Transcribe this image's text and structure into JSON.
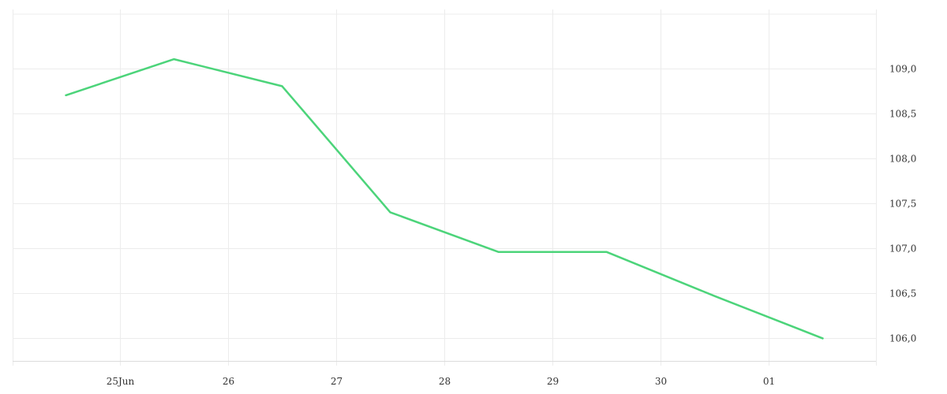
{
  "chart_data": {
    "type": "line",
    "title": "",
    "xlabel": "",
    "ylabel": "",
    "x_ticks": [
      "25Jun",
      "26",
      "27",
      "28",
      "29",
      "30",
      "01"
    ],
    "y_ticks": [
      "106,0",
      "106,5",
      "107,0",
      "107,5",
      "108,0",
      "108,5",
      "109,0"
    ],
    "y_tick_values": [
      106.0,
      106.5,
      107.0,
      107.5,
      108.0,
      108.5,
      109.0
    ],
    "ylim": [
      105.75,
      109.6
    ],
    "series": [
      {
        "x": [
          "24 Jun 12:00",
          "25 Jun 12:00",
          "26 Jun 12:00",
          "27 Jun 12:00",
          "28 Jun 12:00",
          "29 Jun 12:00",
          "30 Jun 12:00",
          "01 Jul 12:00"
        ],
        "y": [
          108.7,
          109.1,
          108.8,
          107.4,
          106.96,
          106.96,
          106.47,
          106.0
        ]
      }
    ],
    "grid": true,
    "legend": "none",
    "y_axis_position": "right",
    "colors": {
      "line": "#4cd47a",
      "grid": "#ececec",
      "axis": "#dcdcdc",
      "text": "#333333"
    }
  }
}
